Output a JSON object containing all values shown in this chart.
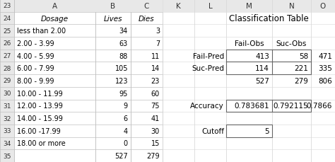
{
  "left_headers": [
    "Dosage",
    "Lives",
    "Dies"
  ],
  "left_rows": [
    [
      "less than 2.00",
      "34",
      "3"
    ],
    [
      "2.00 - 3.99",
      "63",
      "7"
    ],
    [
      "4.00 - 5.99",
      "88",
      "11"
    ],
    [
      "6.00 - 7.99",
      "105",
      "14"
    ],
    [
      "8.00 - 9.99",
      "123",
      "23"
    ],
    [
      "10.00 - 11.99",
      "95",
      "60"
    ],
    [
      "12.00 - 13.99",
      "9",
      "75"
    ],
    [
      "14.00 - 15.99",
      "6",
      "41"
    ],
    [
      "16.00 -17.99",
      "4",
      "30"
    ],
    [
      "18.00 or more",
      "0",
      "15"
    ],
    [
      "",
      "527",
      "279"
    ]
  ],
  "classification_title": "Classification Table",
  "class_col_headers": [
    "Fail-Obs",
    "Suc-Obs"
  ],
  "class_rows": [
    [
      "Fail-Pred",
      "413",
      "58",
      "471"
    ],
    [
      "Suc-Pred",
      "114",
      "221",
      "335"
    ],
    [
      "",
      "527",
      "279",
      "806"
    ]
  ],
  "accuracy_label": "Accuracy",
  "accuracy_values": [
    "0.783681",
    "0.792115",
    "0.7866"
  ],
  "cutoff_label": "Cutoff",
  "cutoff_value": "5",
  "row_nums": [
    23,
    24,
    25,
    26,
    27,
    28,
    29,
    30,
    31,
    32,
    33,
    34,
    35
  ],
  "bg_color": "#ffffff",
  "grid_color": "#c0c0c0",
  "header_strip_color": "#e8e8e8",
  "text_color": "#000000"
}
